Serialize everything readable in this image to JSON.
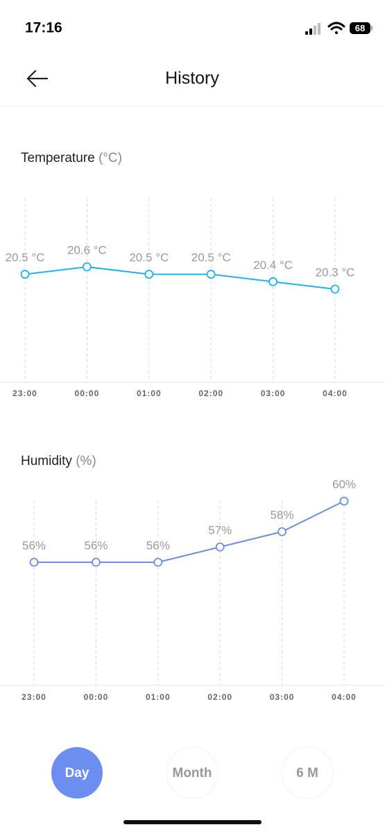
{
  "status_bar": {
    "time": "17:16",
    "battery": "68"
  },
  "header": {
    "title": "History"
  },
  "chart_data": [
    {
      "type": "line",
      "title": "Temperature",
      "unit_label": "(°C)",
      "categories": [
        "23:00",
        "00:00",
        "01:00",
        "02:00",
        "03:00",
        "04:00"
      ],
      "values": [
        20.5,
        20.6,
        20.5,
        20.5,
        20.4,
        20.3
      ],
      "value_labels": [
        "20.5 °C",
        "20.6 °C",
        "20.5 °C",
        "20.5 °C",
        "20.4 °C",
        "20.3 °C"
      ],
      "color": "#1cb4ee"
    },
    {
      "type": "line",
      "title": "Humidity",
      "unit_label": "(%)",
      "categories": [
        "23:00",
        "00:00",
        "01:00",
        "02:00",
        "03:00",
        "04:00"
      ],
      "values": [
        56,
        56,
        56,
        57,
        58,
        60
      ],
      "value_labels": [
        "56%",
        "56%",
        "56%",
        "57%",
        "58%",
        "60%"
      ],
      "color": "#6b8ee2"
    }
  ],
  "range_buttons": [
    "Day",
    "Month",
    "6 M"
  ]
}
